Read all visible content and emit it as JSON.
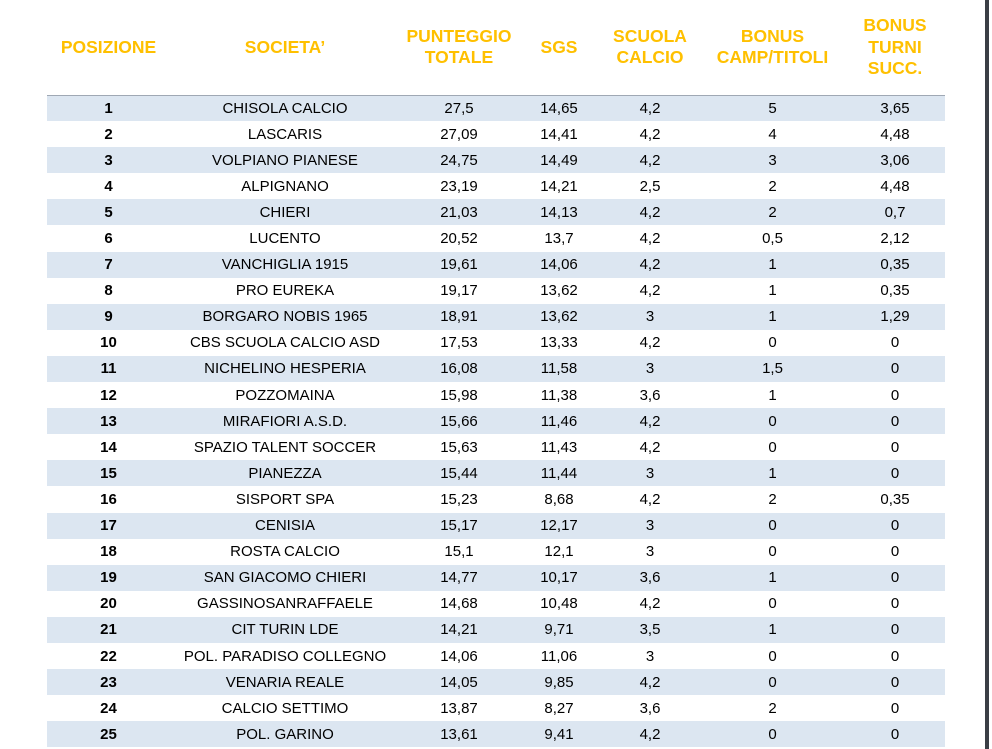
{
  "colors": {
    "header_text": "#FFC000",
    "row_stripe": "#DCE6F1",
    "body_text": "#000000",
    "page_edge": "#3A3E45",
    "header_rule": "#9FA8B4"
  },
  "table": {
    "columns": [
      {
        "id": "posizione",
        "label": "POSIZIONE"
      },
      {
        "id": "societa",
        "label": "SOCIETA’"
      },
      {
        "id": "punteggio-totale",
        "label": "PUNTEGGIO TOTALE"
      },
      {
        "id": "sgs",
        "label": "SGS"
      },
      {
        "id": "scuola-calcio",
        "label": "SCUOLA CALCIO"
      },
      {
        "id": "bonus-camp-titoli",
        "label": "BONUS CAMP/TITOLI"
      },
      {
        "id": "bonus-turni-succ",
        "label": "BONUS TURNI SUCC."
      }
    ],
    "rows": [
      [
        "1",
        "CHISOLA CALCIO",
        "27,5",
        "14,65",
        "4,2",
        "5",
        "3,65"
      ],
      [
        "2",
        "LASCARIS",
        "27,09",
        "14,41",
        "4,2",
        "4",
        "4,48"
      ],
      [
        "3",
        "VOLPIANO PIANESE",
        "24,75",
        "14,49",
        "4,2",
        "3",
        "3,06"
      ],
      [
        "4",
        "ALPIGNANO",
        "23,19",
        "14,21",
        "2,5",
        "2",
        "4,48"
      ],
      [
        "5",
        "CHIERI",
        "21,03",
        "14,13",
        "4,2",
        "2",
        "0,7"
      ],
      [
        "6",
        "LUCENTO",
        "20,52",
        "13,7",
        "4,2",
        "0,5",
        "2,12"
      ],
      [
        "7",
        "VANCHIGLIA 1915",
        "19,61",
        "14,06",
        "4,2",
        "1",
        "0,35"
      ],
      [
        "8",
        "PRO EUREKA",
        "19,17",
        "13,62",
        "4,2",
        "1",
        "0,35"
      ],
      [
        "9",
        "BORGARO NOBIS 1965",
        "18,91",
        "13,62",
        "3",
        "1",
        "1,29"
      ],
      [
        "10",
        "CBS SCUOLA CALCIO ASD",
        "17,53",
        "13,33",
        "4,2",
        "0",
        "0"
      ],
      [
        "11",
        "NICHELINO HESPERIA",
        "16,08",
        "11,58",
        "3",
        "1,5",
        "0"
      ],
      [
        "12",
        "POZZOMAINA",
        "15,98",
        "11,38",
        "3,6",
        "1",
        "0"
      ],
      [
        "13",
        "MIRAFIORI A.S.D.",
        "15,66",
        "11,46",
        "4,2",
        "0",
        "0"
      ],
      [
        "14",
        "SPAZIO TALENT SOCCER",
        "15,63",
        "11,43",
        "4,2",
        "0",
        "0"
      ],
      [
        "15",
        "PIANEZZA",
        "15,44",
        "11,44",
        "3",
        "1",
        "0"
      ],
      [
        "16",
        "SISPORT SPA",
        "15,23",
        "8,68",
        "4,2",
        "2",
        "0,35"
      ],
      [
        "17",
        "CENISIA",
        "15,17",
        "12,17",
        "3",
        "0",
        "0"
      ],
      [
        "18",
        "ROSTA CALCIO",
        "15,1",
        "12,1",
        "3",
        "0",
        "0"
      ],
      [
        "19",
        "SAN GIACOMO CHIERI",
        "14,77",
        "10,17",
        "3,6",
        "1",
        "0"
      ],
      [
        "20",
        "GASSINOSANRAFFAELE",
        "14,68",
        "10,48",
        "4,2",
        "0",
        "0"
      ],
      [
        "21",
        "CIT TURIN LDE",
        "14,21",
        "9,71",
        "3,5",
        "1",
        "0"
      ],
      [
        "22",
        "POL. PARADISO COLLEGNO",
        "14,06",
        "11,06",
        "3",
        "0",
        "0"
      ],
      [
        "23",
        "VENARIA REALE",
        "14,05",
        "9,85",
        "4,2",
        "0",
        "0"
      ],
      [
        "24",
        "CALCIO SETTIMO",
        "13,87",
        "8,27",
        "3,6",
        "2",
        "0"
      ],
      [
        "25",
        "POL. GARINO",
        "13,61",
        "9,41",
        "4,2",
        "0",
        "0"
      ]
    ]
  }
}
